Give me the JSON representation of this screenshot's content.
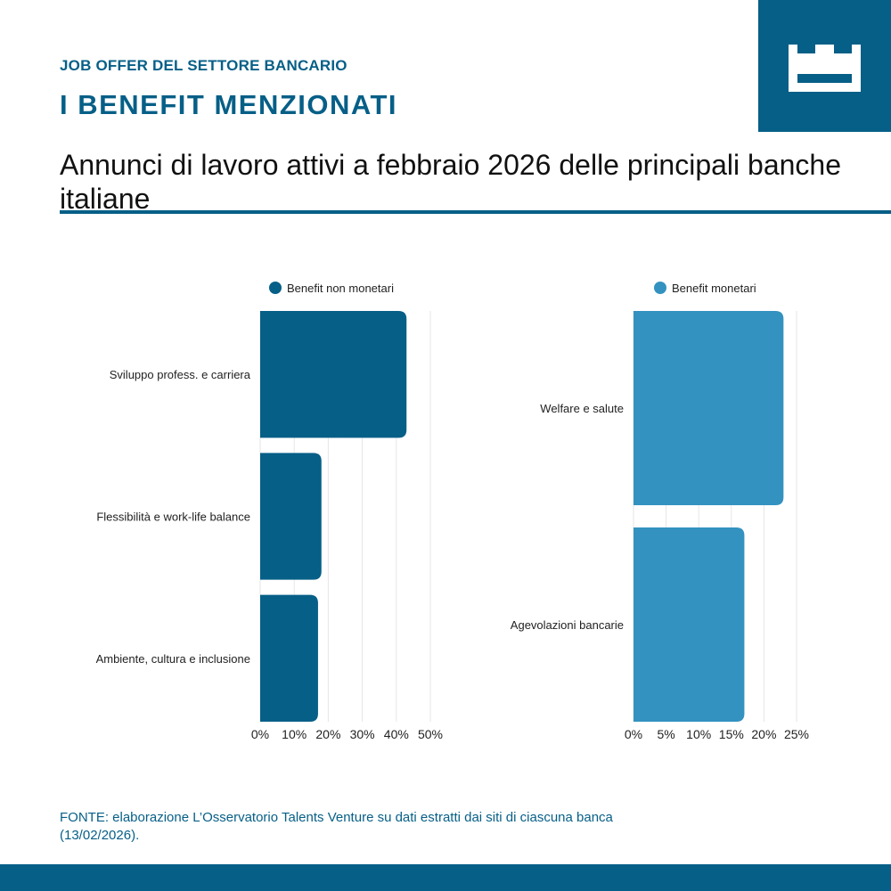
{
  "header": {
    "kicker": "JOB OFFER DEL SETTORE BANCARIO",
    "headline": "I BENEFIT MENZIONATI",
    "subtitle": "Annunci di lavoro attivi a febbraio 2026 delle principali banche italiane"
  },
  "colors": {
    "brand": "#065f87",
    "non_monetary": "#065f87",
    "monetary": "#3392c0",
    "grid": "#e6e6e6"
  },
  "logo": {
    "icon": "crown-w-logo-icon"
  },
  "chart_data": [
    {
      "type": "bar",
      "orientation": "horizontal",
      "series": [
        {
          "name": "Benefit non monetari",
          "values": [
            43,
            18,
            17
          ]
        }
      ],
      "categories": [
        "Sviluppo profess. e carriera",
        "Flessibilità e work-life balance",
        "Ambiente, cultura e inclusione"
      ],
      "xlim": [
        0,
        50
      ],
      "ticks": [
        "0%",
        "10%",
        "20%",
        "30%",
        "40%",
        "50%"
      ],
      "grid": true,
      "legend": "top-center"
    },
    {
      "type": "bar",
      "orientation": "horizontal",
      "series": [
        {
          "name": "Benefit monetari",
          "values": [
            23,
            17
          ]
        }
      ],
      "categories": [
        "Welfare e salute",
        "Agevolazioni bancarie"
      ],
      "xlim": [
        0,
        25
      ],
      "ticks": [
        "0%",
        "5%",
        "10%",
        "15%",
        "20%",
        "25%"
      ],
      "grid": true,
      "legend": "top-center"
    }
  ],
  "source": "FONTE: elaborazione L’Osservatorio Talents Venture su dati estratti dai siti di ciascuna banca (13/02/2026)."
}
